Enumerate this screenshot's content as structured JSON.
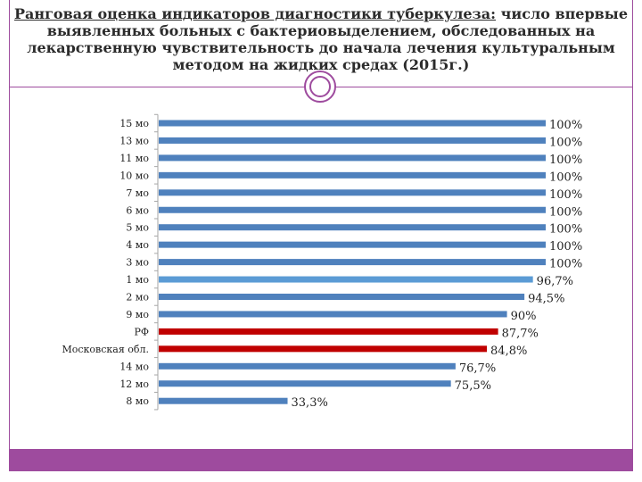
{
  "header": {
    "title_underlined": "Ранговая оценка индикаторов диагностики туберкулеза:",
    "title_rest": " число впервые выявленных больных с бактериовыделением, обследованных на лекарственную чувствительность до начала лечения культуральным методом на жидких средах (2015г.)"
  },
  "colors": {
    "accent": "#9e4b9e",
    "bar_default": "#4f81bd",
    "bar_highlight": "#c00000",
    "bar_light": "#5b9bd5"
  },
  "chart_data": {
    "type": "bar",
    "orientation": "horizontal",
    "categories": [
      "15 мо",
      "13 мо",
      "11 мо",
      "10 мо",
      "7 мо",
      "6 мо",
      "5 мо",
      "4 мо",
      "3 мо",
      "1 мо",
      "2 мо",
      "9 мо",
      "РФ",
      "Московская обл.",
      "14 мо",
      "12 мо",
      "8 мо"
    ],
    "values": [
      100,
      100,
      100,
      100,
      100,
      100,
      100,
      100,
      100,
      96.7,
      94.5,
      90,
      87.7,
      84.8,
      76.7,
      75.5,
      33.3
    ],
    "labels": [
      "100%",
      "100%",
      "100%",
      "100%",
      "100%",
      "100%",
      "100%",
      "100%",
      "100%",
      "96,7%",
      "94,5%",
      "90%",
      "87,7%",
      "84,8%",
      "76,7%",
      "75,5%",
      "33,3%"
    ],
    "bar_colors": [
      "#4f81bd",
      "#4f81bd",
      "#4f81bd",
      "#4f81bd",
      "#4f81bd",
      "#4f81bd",
      "#4f81bd",
      "#4f81bd",
      "#4f81bd",
      "#5b9bd5",
      "#4f81bd",
      "#4f81bd",
      "#c00000",
      "#c00000",
      "#4f81bd",
      "#4f81bd",
      "#4f81bd"
    ],
    "xlim": [
      0,
      100
    ],
    "grid": false,
    "legend": "none"
  }
}
